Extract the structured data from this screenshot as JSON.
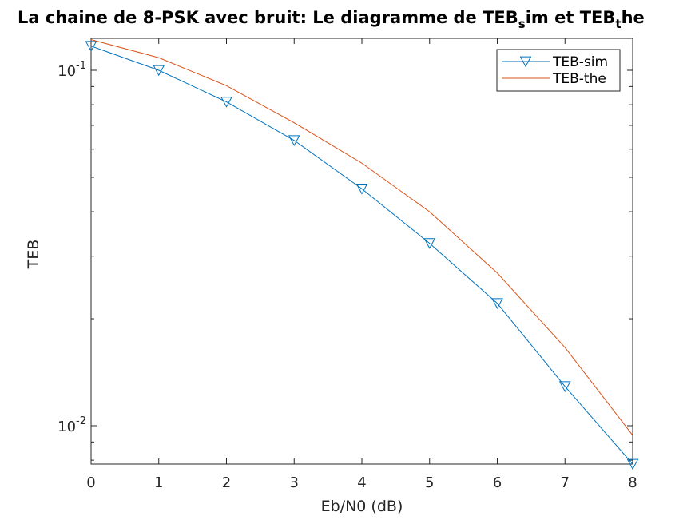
{
  "chart_data": {
    "type": "line",
    "title_parts": [
      "La chaine de 8-PSK avec bruit: Le diagramme de TEB",
      "s",
      "im et TEB",
      "t",
      "he"
    ],
    "xlabel": "Eb/N0 (dB)",
    "ylabel": "TEB",
    "xlim": [
      0,
      8
    ],
    "ylim": [
      0.0078,
      0.123
    ],
    "yscale": "log",
    "x_ticks": [
      "0",
      "1",
      "2",
      "3",
      "4",
      "5",
      "6",
      "7",
      "8"
    ],
    "y_ticks": [
      {
        "value": 0.1,
        "base": "10",
        "exp": "-1"
      },
      {
        "value": 0.01,
        "base": "10",
        "exp": "-2"
      }
    ],
    "grid": false,
    "legend_position": "top-right",
    "series": [
      {
        "name": "TEB-sim",
        "color": "#0072BD",
        "marker": "triangle-down",
        "x": [
          0,
          1,
          2,
          3,
          4,
          5,
          6,
          7,
          8
        ],
        "y": [
          0.117,
          0.1,
          0.0815,
          0.0635,
          0.0464,
          0.0326,
          0.0221,
          0.0129,
          0.0078
        ]
      },
      {
        "name": "TEB-the",
        "color": "#D95319",
        "marker": "none",
        "x": [
          0,
          1,
          2,
          3,
          4,
          5,
          6,
          7,
          8
        ],
        "y": [
          0.122,
          0.1085,
          0.0905,
          0.0712,
          0.0548,
          0.04,
          0.0269,
          0.0166,
          0.0094
        ]
      }
    ]
  }
}
